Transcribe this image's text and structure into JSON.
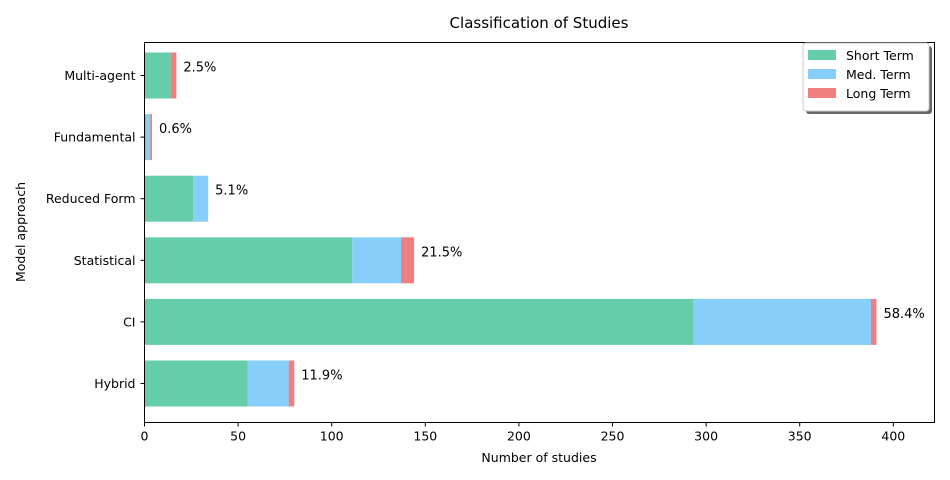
{
  "chart_data": {
    "type": "bar",
    "orientation": "horizontal",
    "stacked": true,
    "title": "Classification of Studies",
    "xlabel": "Number of studies",
    "ylabel": "Model approach",
    "xlim": [
      0,
      422
    ],
    "xticks": [
      0,
      50,
      100,
      150,
      200,
      250,
      300,
      350,
      400
    ],
    "categories": [
      "Multi-agent",
      "Fundamental",
      "Reduced Form",
      "Statistical",
      "CI",
      "Hybrid"
    ],
    "series": [
      {
        "name": "Short Term",
        "color": "#66cdaa",
        "values": [
          14,
          1,
          26,
          111,
          293,
          55
        ]
      },
      {
        "name": "Med. Term",
        "color": "#87cefa",
        "values": [
          0,
          2,
          8,
          26,
          95,
          22
        ]
      },
      {
        "name": "Long Term",
        "color": "#f08080",
        "values": [
          3,
          1,
          0,
          7,
          3,
          3
        ]
      }
    ],
    "percent_labels": [
      "2.5%",
      "0.6%",
      "5.1%",
      "21.5%",
      "58.4%",
      "11.9%"
    ],
    "legend_position": "top-right",
    "grid": false
  }
}
